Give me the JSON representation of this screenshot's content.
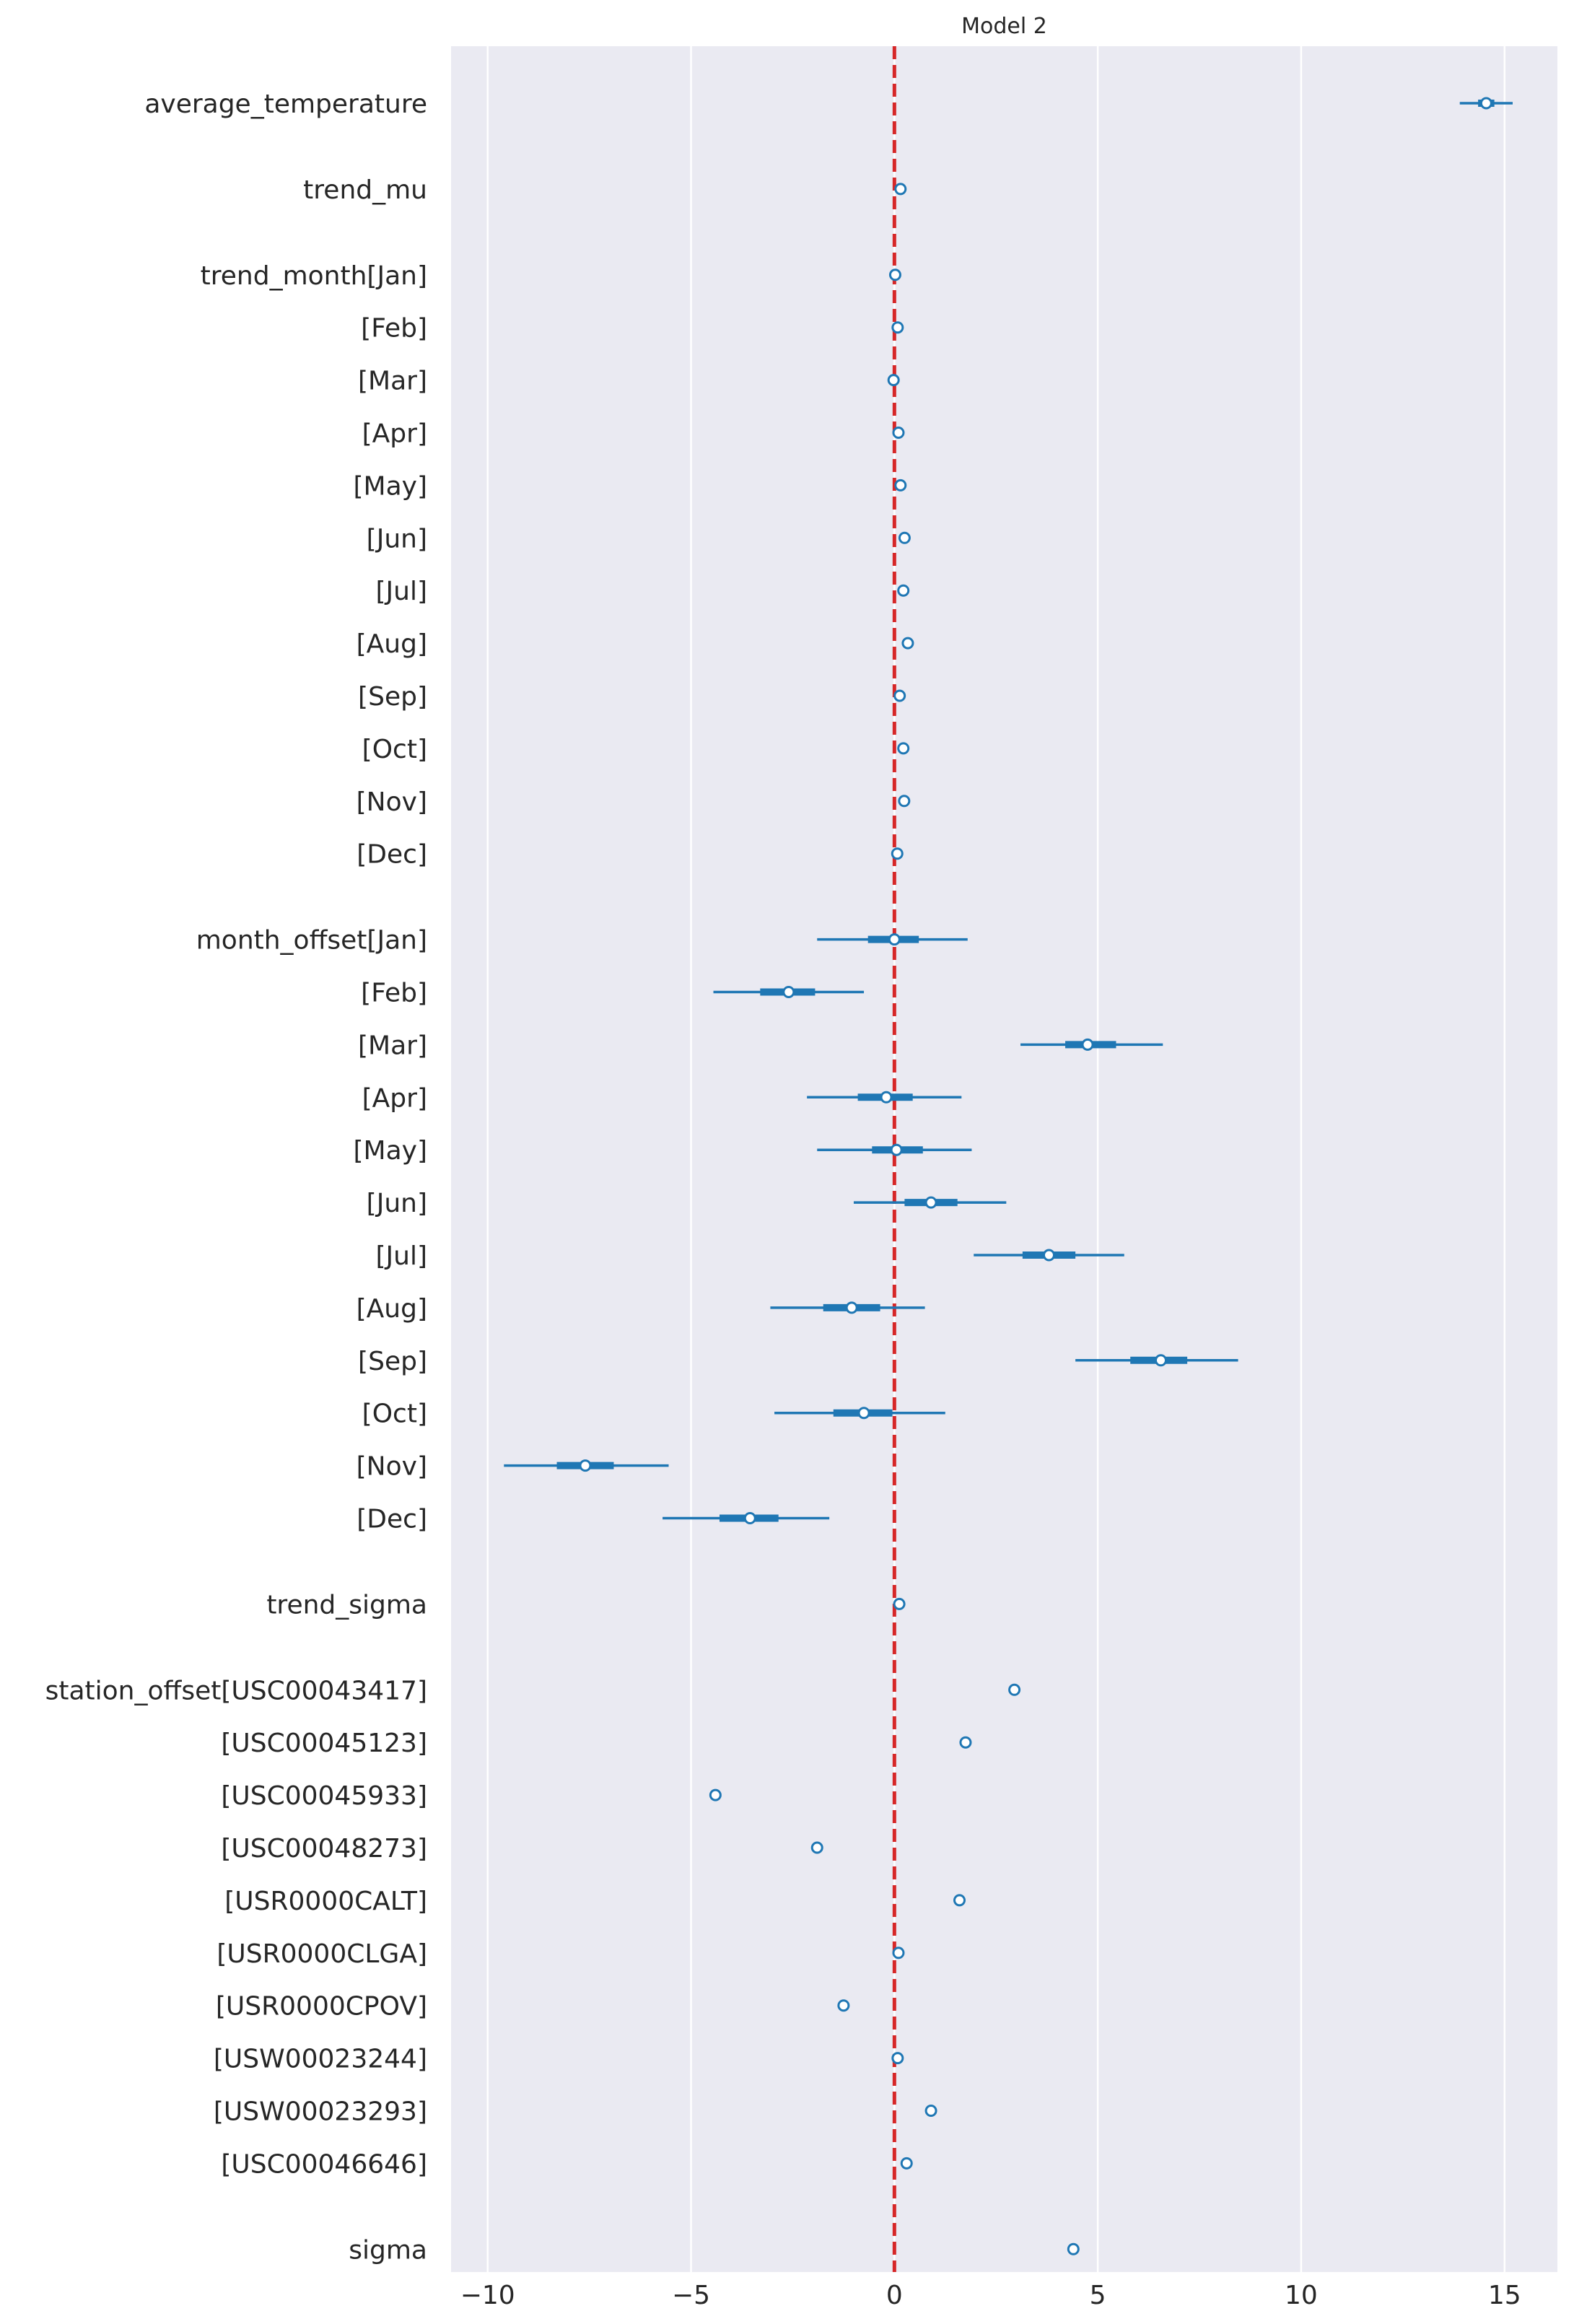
{
  "chart_data": {
    "type": "forest",
    "title": "Model 2",
    "xlabel": "",
    "ylabel": "",
    "xlim": [
      -10.9,
      16.3
    ],
    "xticks": [
      -10,
      -5,
      0,
      5,
      10,
      15
    ],
    "xtick_labels": [
      "−10",
      "−5",
      "0",
      "5",
      "10",
      "15"
    ],
    "reference_line": 0,
    "reference_color": "#d62728",
    "series_color": "#1f77b4",
    "grid": "vertical",
    "groups": [
      {
        "label": "average_temperature",
        "items": [
          {
            "label": "average_temperature",
            "mean": 14.55,
            "hdi": [
              13.9,
              15.2
            ],
            "iqr": [
              14.35,
              14.75
            ]
          }
        ]
      },
      {
        "label": "trend_mu",
        "items": [
          {
            "label": "trend_mu",
            "mean": 0.15
          }
        ]
      },
      {
        "label": "trend_month",
        "items": [
          {
            "label": "trend_month[Jan]",
            "mean": 0.02
          },
          {
            "label": "[Feb]",
            "mean": 0.08
          },
          {
            "label": "[Mar]",
            "mean": -0.02
          },
          {
            "label": "[Apr]",
            "mean": 0.1
          },
          {
            "label": "[May]",
            "mean": 0.15
          },
          {
            "label": "[Jun]",
            "mean": 0.25
          },
          {
            "label": "[Jul]",
            "mean": 0.22
          },
          {
            "label": "[Aug]",
            "mean": 0.33
          },
          {
            "label": "[Sep]",
            "mean": 0.13
          },
          {
            "label": "[Oct]",
            "mean": 0.22
          },
          {
            "label": "[Nov]",
            "mean": 0.24
          },
          {
            "label": "[Dec]",
            "mean": 0.07
          }
        ]
      },
      {
        "label": "month_offset",
        "items": [
          {
            "label": "month_offset[Jan]",
            "mean": 0.0,
            "hdi": [
              -1.9,
              1.8
            ],
            "iqr": [
              -0.65,
              0.6
            ]
          },
          {
            "label": "[Feb]",
            "mean": -2.6,
            "hdi": [
              -4.45,
              -0.75
            ],
            "iqr": [
              -3.3,
              -1.95
            ]
          },
          {
            "label": "[Mar]",
            "mean": 4.75,
            "hdi": [
              3.1,
              6.6
            ],
            "iqr": [
              4.2,
              5.45
            ]
          },
          {
            "label": "[Apr]",
            "mean": -0.2,
            "hdi": [
              -2.15,
              1.65
            ],
            "iqr": [
              -0.9,
              0.45
            ]
          },
          {
            "label": "[May]",
            "mean": 0.05,
            "hdi": [
              -1.9,
              1.9
            ],
            "iqr": [
              -0.55,
              0.7
            ]
          },
          {
            "label": "[Jun]",
            "mean": 0.9,
            "hdi": [
              -1.0,
              2.75
            ],
            "iqr": [
              0.25,
              1.55
            ]
          },
          {
            "label": "[Jul]",
            "mean": 3.8,
            "hdi": [
              1.95,
              5.65
            ],
            "iqr": [
              3.15,
              4.45
            ]
          },
          {
            "label": "[Aug]",
            "mean": -1.05,
            "hdi": [
              -3.05,
              0.75
            ],
            "iqr": [
              -1.75,
              -0.35
            ]
          },
          {
            "label": "[Sep]",
            "mean": 6.55,
            "hdi": [
              4.45,
              8.45
            ],
            "iqr": [
              5.8,
              7.2
            ]
          },
          {
            "label": "[Oct]",
            "mean": -0.75,
            "hdi": [
              -2.95,
              1.25
            ],
            "iqr": [
              -1.5,
              -0.05
            ]
          },
          {
            "label": "[Nov]",
            "mean": -7.6,
            "hdi": [
              -9.6,
              -5.55
            ],
            "iqr": [
              -8.3,
              -6.9
            ]
          },
          {
            "label": "[Dec]",
            "mean": -3.55,
            "hdi": [
              -5.7,
              -1.6
            ],
            "iqr": [
              -4.3,
              -2.85
            ]
          }
        ]
      },
      {
        "label": "trend_sigma",
        "items": [
          {
            "label": "trend_sigma",
            "mean": 0.12
          }
        ]
      },
      {
        "label": "station_offset",
        "items": [
          {
            "label": "station_offset[USC00043417]",
            "mean": 2.95
          },
          {
            "label": "[USC00045123]",
            "mean": 1.75
          },
          {
            "label": "[USC00045933]",
            "mean": -4.4
          },
          {
            "label": "[USC00048273]",
            "mean": -1.9
          },
          {
            "label": "[USR0000CALT]",
            "mean": 1.6
          },
          {
            "label": "[USR0000CLGA]",
            "mean": 0.1
          },
          {
            "label": "[USR0000CPOV]",
            "mean": -1.25
          },
          {
            "label": "[USW00023244]",
            "mean": 0.08
          },
          {
            "label": "[USW00023293]",
            "mean": 0.9
          },
          {
            "label": "[USC00046646]",
            "mean": 0.3
          }
        ]
      },
      {
        "label": "sigma",
        "items": [
          {
            "label": "sigma",
            "mean": 4.4
          }
        ]
      }
    ]
  }
}
